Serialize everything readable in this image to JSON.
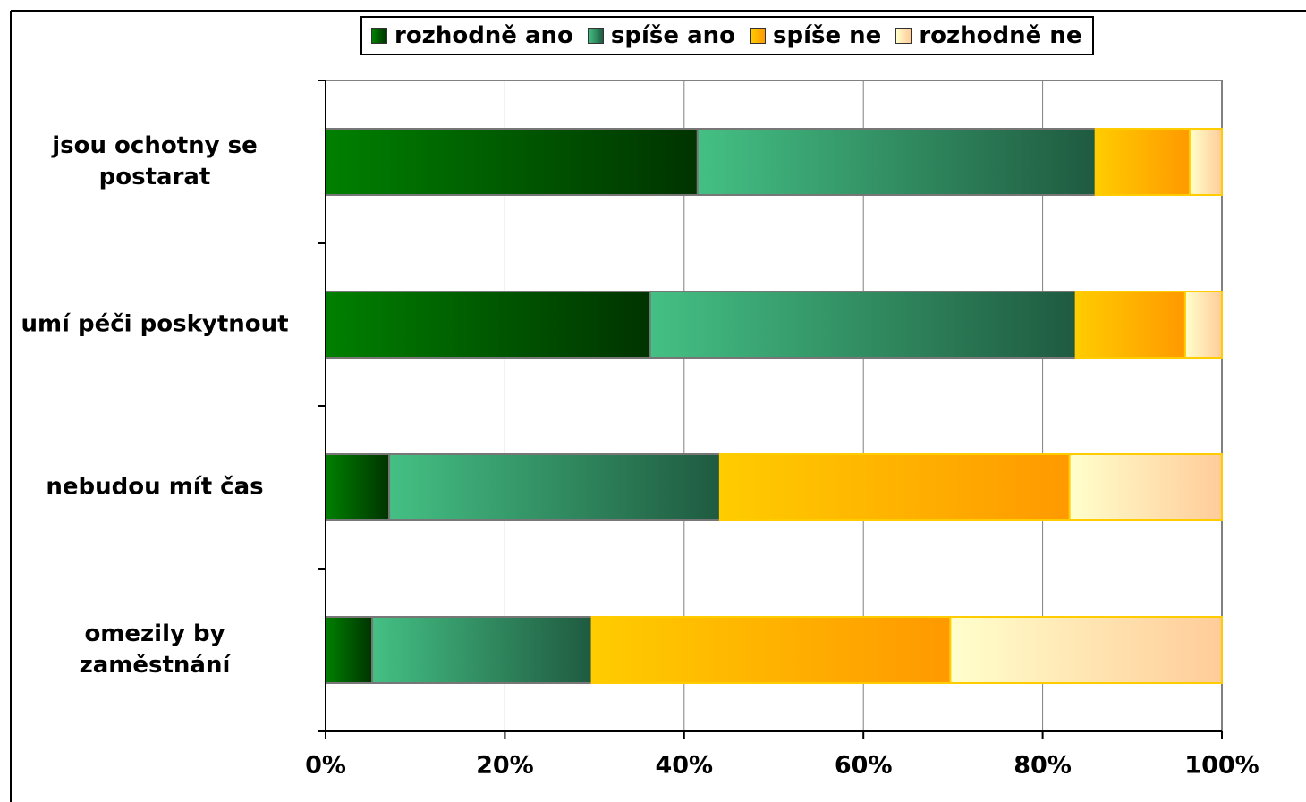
{
  "chart_data": {
    "type": "stacked_barh",
    "categories": [
      "jsou ochotny se postarat",
      "umí péči poskytnout",
      "nebudou mít čas",
      "omezily by zaměstnání"
    ],
    "series": [
      {
        "name": "rozhodně ano",
        "color": "#008000",
        "gradient": [
          "#008000",
          "#003300"
        ],
        "values": [
          41.5,
          36.2,
          7.1,
          5.2
        ]
      },
      {
        "name": "spíše ano",
        "color": "#44c084",
        "gradient": [
          "#44c084",
          "#1f5a40"
        ],
        "values": [
          44.4,
          47.5,
          36.9,
          24.5
        ]
      },
      {
        "name": "spíše ne",
        "color": "#ffcc00",
        "gradient": [
          "#ffcc00",
          "#ff9900"
        ],
        "values": [
          10.5,
          12.2,
          39.0,
          40.0
        ]
      },
      {
        "name": "rozhodně ne",
        "color": "#ffffcc",
        "gradient": [
          "#ffffcc",
          "#ffcc99"
        ],
        "values": [
          3.6,
          4.1,
          17.0,
          30.3
        ]
      }
    ],
    "xlim": [
      0,
      100
    ],
    "xticks": [
      {
        "value": 0,
        "label": "0%"
      },
      {
        "value": 20,
        "label": "20%"
      },
      {
        "value": 40,
        "label": "40%"
      },
      {
        "value": 60,
        "label": "60%"
      },
      {
        "value": 80,
        "label": "80%"
      },
      {
        "value": 100,
        "label": "100%"
      }
    ],
    "grid": true,
    "legend": "top"
  }
}
